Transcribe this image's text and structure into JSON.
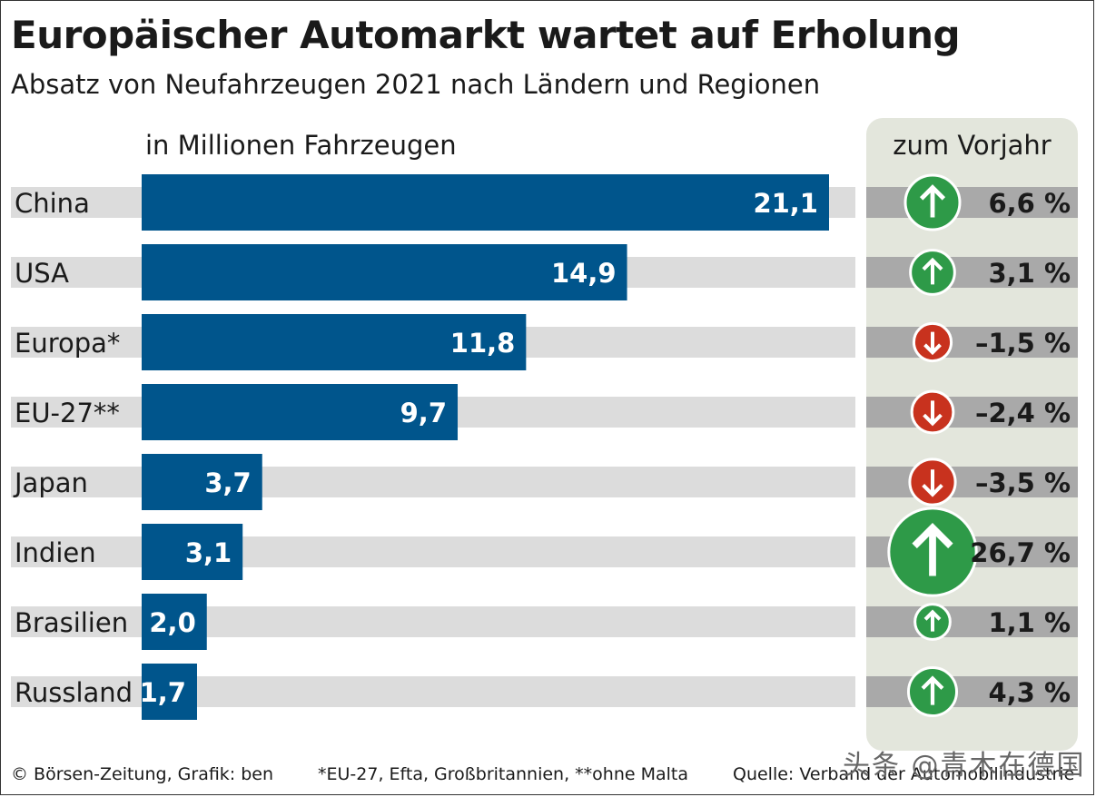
{
  "chart_data": {
    "type": "bar",
    "orientation": "horizontal",
    "title": "Europäischer Automarkt wartet auf Erholung",
    "subtitle": "Absatz von Neufahrzeugen 2021 nach Ländern und Regionen",
    "unit_label": "in Millionen Fahrzeugen",
    "change_header": "zum Vorjahr",
    "categories": [
      "China",
      "USA",
      "Europa*",
      "EU-27**",
      "Japan",
      "Indien",
      "Brasilien",
      "Russland"
    ],
    "values": [
      21.1,
      14.9,
      11.8,
      9.7,
      3.7,
      3.1,
      2.0,
      1.7
    ],
    "value_labels": [
      "21,1",
      "14,9",
      "11,8",
      "9,7",
      "3,7",
      "3,1",
      "2,0",
      "1,7"
    ],
    "changes_pct": [
      6.6,
      3.1,
      -1.5,
      -2.4,
      -3.5,
      26.7,
      1.1,
      4.3
    ],
    "change_labels": [
      "6,6 %",
      "3,1 %",
      "–1,5 %",
      "–2,4 %",
      "–3,5 %",
      "26,7 %",
      "1,1 %",
      "4,3 %"
    ],
    "change_directions": [
      "up",
      "up",
      "down",
      "down",
      "down",
      "up",
      "up",
      "up"
    ],
    "xlim": [
      0,
      21.1
    ]
  },
  "footer": {
    "copyright": "© Börsen-Zeitung, Grafik: ben",
    "note": "*EU-27, Efta, Großbritannien, **ohne Malta",
    "source": "Quelle: Verband der Automobilindustrie"
  },
  "watermark": "头条 @青木在德国",
  "colors": {
    "bar": "#00558c",
    "track": "#dcdcdc",
    "change_track": "#a9a9a9",
    "panel": "#e3e6dc",
    "up": "#2e9a48",
    "down": "#c8321e",
    "text": "#1a1a1a"
  },
  "icons": {
    "up": "arrow-up-icon",
    "down": "arrow-down-icon"
  }
}
